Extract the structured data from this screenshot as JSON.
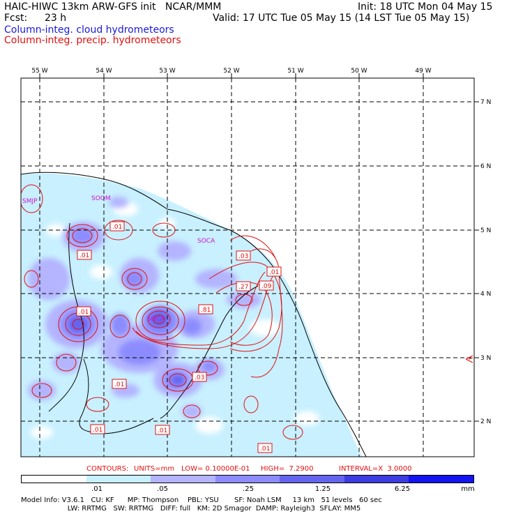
{
  "header": {
    "title_left": "HAIC-HIWC 13km ARW-GFS init   NCAR/MMM",
    "init": "Init: 18 UTC Mon 04 May 15",
    "fcst_label": "Fcst:",
    "fcst_value": "23 h",
    "valid": "Valid: 17 UTC Tue 05 May 15 (14 LST Tue 05 May 15)",
    "field_cloud": "Column-integ. cloud hydrometeors",
    "field_precip": "Column-integ. precip. hydrometeors"
  },
  "map": {
    "lon_labels": [
      "55 W",
      "54 W",
      "53 W",
      "52 W",
      "51 W",
      "50 W",
      "49 W"
    ],
    "lat_labels": [
      "7 N",
      "6 N",
      "5 N",
      "4 N",
      "3 N",
      "2 N"
    ],
    "stations": [
      "SMJP",
      "SOOM",
      "SOCA",
      "SOCA"
    ],
    "contour_labels": [
      ".01",
      ".01",
      ".01",
      ".03",
      ".01",
      ".27",
      ".09",
      ".81",
      ".01",
      ".03",
      ".01",
      ".01",
      ".01",
      ".01"
    ],
    "colors": {
      "shade_1": "#c8f0ff",
      "shade_2": "#b4b4ff",
      "shade_3": "#8c8cff",
      "shade_4": "#6464ee",
      "shade_5": "#3c3ce0",
      "contour": "#e01010",
      "coast": "#000000"
    }
  },
  "contour_info": {
    "contours_label": "CONTOURS:",
    "units": "UNITS=mm",
    "low": "LOW= 0.10000E-01",
    "high": "HIGH=  7.2900",
    "interval": "INTERVAL=X  3.0000"
  },
  "colorbar": {
    "ticks": [
      ".01",
      ".05",
      ".25",
      "1.25",
      "6.25"
    ],
    "unit": "mm",
    "colors": [
      "#ffffff",
      "#c8f0ff",
      "#b4b4ff",
      "#8c8cff",
      "#6464ee",
      "#3c3ce0",
      "#1414f0"
    ]
  },
  "model_info": {
    "line1": "Model Info: V3.6.1   CU: KF      MP: Thompson    PBL: YSU       SF: Noah LSM     13 km   51 levels   60 sec",
    "line2": "                     LW: RRTMG   SW: RRTMG   DIFF: full   KM: 2D Smagor  DAMP: Rayleigh3  SFLAY: MM5"
  }
}
